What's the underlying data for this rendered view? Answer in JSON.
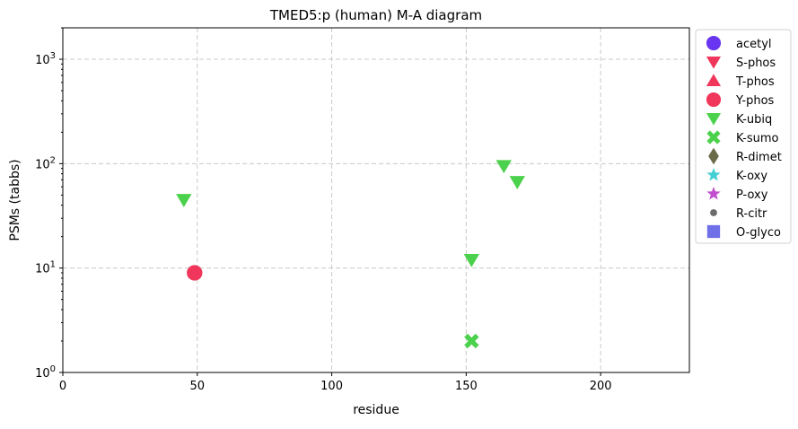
{
  "chart_data": {
    "type": "scatter",
    "title": "TMED5:p (human) M-A diagram",
    "xlabel": "residue",
    "ylabel": "PSMs (tabbs)",
    "x_range": [
      0,
      233
    ],
    "y_range": [
      1,
      2000
    ],
    "y_scale": "log",
    "grid": true,
    "legend_position": "outside-right",
    "x_ticks": [
      {
        "value": 0,
        "label": "0"
      },
      {
        "value": 50,
        "label": "50"
      },
      {
        "value": 100,
        "label": "100"
      },
      {
        "value": 150,
        "label": "150"
      },
      {
        "value": 200,
        "label": "200"
      }
    ],
    "y_ticks": [
      {
        "value": 1,
        "base": "10",
        "exp": "0"
      },
      {
        "value": 10,
        "base": "10",
        "exp": "1"
      },
      {
        "value": 100,
        "base": "10",
        "exp": "2"
      },
      {
        "value": 1000,
        "base": "10",
        "exp": "3"
      }
    ],
    "series": [
      {
        "name": "acetyl",
        "marker": "circle",
        "color": "#6a35f0",
        "points": []
      },
      {
        "name": "S-phos",
        "marker": "triangle-down",
        "color": "#f0365a",
        "points": []
      },
      {
        "name": "T-phos",
        "marker": "triangle-up",
        "color": "#f0365a",
        "points": []
      },
      {
        "name": "Y-phos",
        "marker": "circle",
        "color": "#f0365a",
        "points": [
          {
            "x": 49,
            "y": 9
          }
        ]
      },
      {
        "name": "K-ubiq",
        "marker": "triangle-down",
        "color": "#4cd14c",
        "points": [
          {
            "x": 45,
            "y": 45
          },
          {
            "x": 152,
            "y": 12
          },
          {
            "x": 164,
            "y": 95
          },
          {
            "x": 169,
            "y": 67
          }
        ]
      },
      {
        "name": "K-sumo",
        "marker": "x",
        "color": "#4cd14c",
        "points": [
          {
            "x": 152,
            "y": 2
          }
        ]
      },
      {
        "name": "R-dimet",
        "marker": "diamond",
        "color": "#6b6b4a",
        "points": []
      },
      {
        "name": "K-oxy",
        "marker": "star",
        "color": "#44cfd4",
        "points": []
      },
      {
        "name": "P-oxy",
        "marker": "star",
        "color": "#c24fd0",
        "points": []
      },
      {
        "name": "R-citr",
        "marker": "small-circle",
        "color": "#6b6b6b",
        "points": []
      },
      {
        "name": "O-glyco",
        "marker": "square",
        "color": "#6f6fe8",
        "points": []
      }
    ]
  }
}
